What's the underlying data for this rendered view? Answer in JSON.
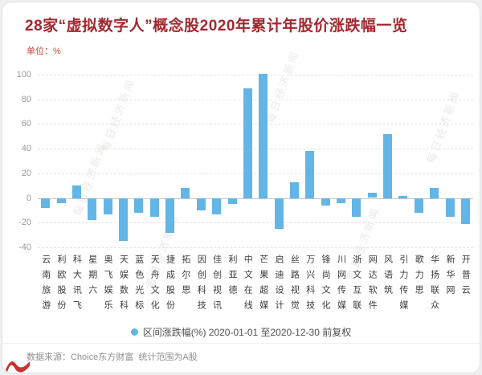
{
  "header": {
    "title": "28家“虚拟数字人”概念股2020年累计年股价涨跌幅一览",
    "unit_label": "单位：%"
  },
  "chart_data": {
    "type": "bar",
    "title": "28家“虚拟数字人”概念股2020年累计年股价涨跌幅一览",
    "categories": [
      "云南旅游",
      "利欧股份",
      "科大讯飞",
      "星期六",
      "奥飞娱乐",
      "天娱数科",
      "蓝色光标",
      "天舟文化",
      "捷成股份",
      "拓尔思",
      "因创科技",
      "佳创视讯",
      "利亚德",
      "中文在线",
      "芒果超媒",
      "启迪设计",
      "丝路视觉",
      "万兴科技",
      "锋尚文化",
      "川网传媒",
      "浙文互联",
      "网达软件",
      "风语筑",
      "引力传媒",
      "歌力思",
      "华扬联众",
      "新华网",
      "开普云"
    ],
    "values": [
      -8,
      -4,
      10,
      -18,
      -13,
      -35,
      -12,
      -15,
      -28,
      8,
      -10,
      -13,
      -5,
      89,
      101,
      -25,
      13,
      38,
      -6,
      -4,
      -15,
      4,
      52,
      2,
      -12,
      8,
      -15,
      -21
    ],
    "xlabel": "",
    "ylabel": "单位：%",
    "ylim": [
      -40,
      100
    ],
    "yticks": [
      100,
      80,
      60,
      40,
      20,
      0,
      -20,
      -40
    ],
    "grid": "horizontal-dashed",
    "bar_color": "#63b5e6",
    "legend": "区间涨跌幅(%) 2020-01-01 至2020-12-30 前复权",
    "legend_position": "bottom-center"
  },
  "footer": {
    "source": "数据来源：Choice东方财富  统计范围为A股"
  },
  "watermark": {
    "text": "每日经济新闻"
  },
  "colors": {
    "title": "#a3282f",
    "unit": "#c4453a",
    "bar": "#63b5e6",
    "logo": "#c5342c",
    "card_background": "#ffffff"
  }
}
